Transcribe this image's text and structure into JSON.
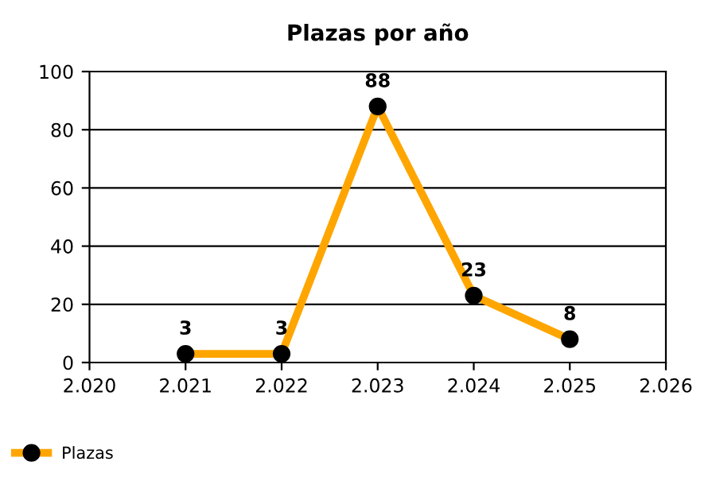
{
  "chart_data": {
    "type": "line",
    "title": "Plazas por año",
    "x": [
      2021,
      2022,
      2023,
      2024,
      2025
    ],
    "series": [
      {
        "name": "Plazas",
        "color": "#ffa500",
        "values": [
          3,
          3,
          88,
          23,
          8
        ]
      }
    ],
    "xlim": [
      2020,
      2026
    ],
    "xticks": [
      {
        "value": 2020,
        "label": "2.020"
      },
      {
        "value": 2021,
        "label": "2.021"
      },
      {
        "value": 2022,
        "label": "2.022"
      },
      {
        "value": 2023,
        "label": "2.023"
      },
      {
        "value": 2024,
        "label": "2.024"
      },
      {
        "value": 2025,
        "label": "2.025"
      },
      {
        "value": 2026,
        "label": "2.026"
      }
    ],
    "ylim": [
      0,
      100
    ],
    "yticks": [
      0,
      20,
      40,
      60,
      80,
      100
    ],
    "grid": "y",
    "legend": "bottom left",
    "marker": "circle",
    "line_style": "solid",
    "data_labels": true
  }
}
